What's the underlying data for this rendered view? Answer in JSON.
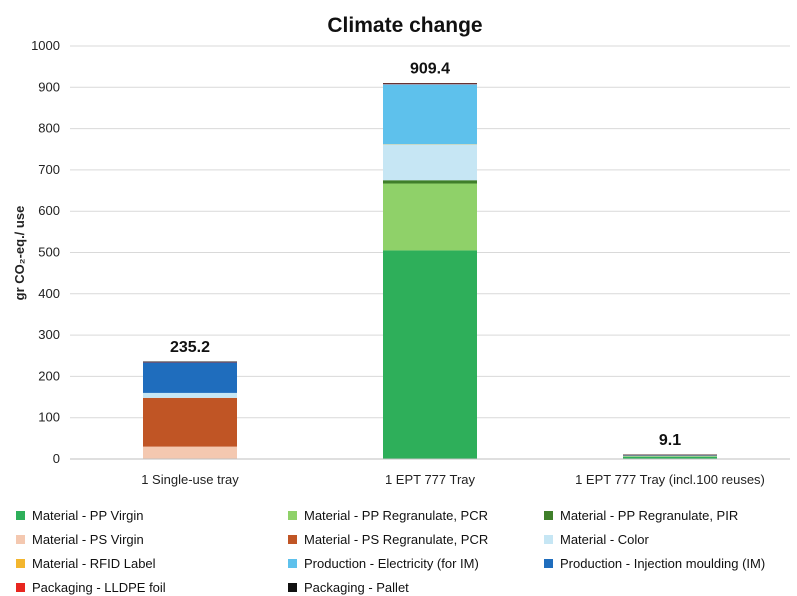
{
  "chart_data": {
    "type": "bar",
    "stacked": true,
    "title": "Climate change",
    "ylabel": "gr CO₂-eq./ use",
    "ylim": [
      0,
      1000
    ],
    "yticks": [
      0,
      100,
      200,
      300,
      400,
      500,
      600,
      700,
      800,
      900,
      1000
    ],
    "grid": true,
    "legend_position": "bottom",
    "categories": [
      "1 Single-use tray",
      "1 EPT 777 Tray",
      "1 EPT 777 Tray (incl.100 reuses)"
    ],
    "totals": [
      "235.2",
      "909.4",
      "9.1"
    ],
    "series": [
      {
        "name": "Material - PP Virgin",
        "color": "#2eaf5a",
        "values": [
          0,
          505,
          5.0
        ]
      },
      {
        "name": "Material - PP Regranulate, PCR",
        "color": "#8fd169",
        "values": [
          0,
          162,
          1.6
        ]
      },
      {
        "name": "Material - PP Regranulate, PIR",
        "color": "#3f7f2a",
        "values": [
          0,
          8,
          0.1
        ]
      },
      {
        "name": "Material - PS Virgin",
        "color": "#f4c8b0",
        "values": [
          30,
          0,
          0
        ]
      },
      {
        "name": "Material - PS Regranulate, PCR",
        "color": "#c05525",
        "values": [
          118,
          0,
          0
        ]
      },
      {
        "name": "Material - Color",
        "color": "#c6e6f4",
        "values": [
          12,
          87,
          0.9
        ]
      },
      {
        "name": "Material - RFID Label",
        "color": "#f3b62e",
        "values": [
          0,
          0.4,
          0
        ]
      },
      {
        "name": "Production - Electricity (for IM)",
        "color": "#5ec1ec",
        "values": [
          0,
          145,
          1.4
        ]
      },
      {
        "name": "Production - Injection moulding (IM)",
        "color": "#1f6dbd",
        "values": [
          74,
          0,
          0
        ]
      },
      {
        "name": "Packaging - LLDPE foil",
        "color": "#e8261f",
        "values": [
          0.5,
          1.5,
          0.05
        ]
      },
      {
        "name": "Packaging - Pallet",
        "color": "#111111",
        "values": [
          0.7,
          0.5,
          0.05
        ]
      }
    ]
  }
}
